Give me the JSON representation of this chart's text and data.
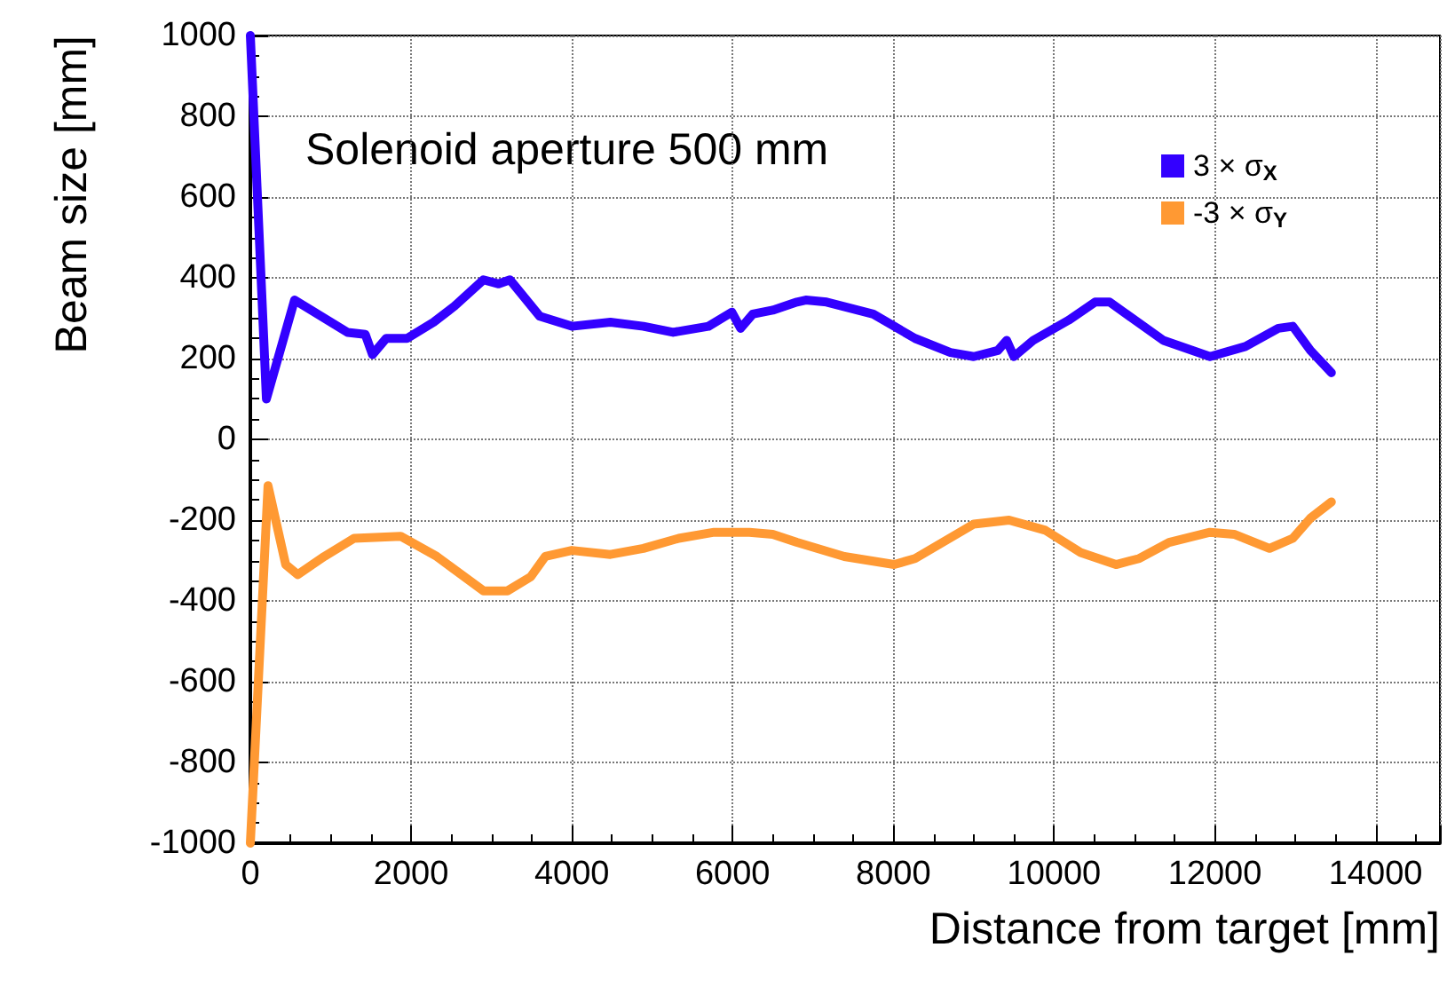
{
  "chart_data": {
    "type": "line",
    "xlabel": "Distance from target [mm]",
    "ylabel": "Beam size [mm]",
    "annotations": [
      "Solenoid aperture 500 mm"
    ],
    "xlim": [
      0,
      14800
    ],
    "xticks": [
      0,
      2000,
      4000,
      6000,
      8000,
      10000,
      12000,
      14000
    ],
    "ylim": [
      -1000,
      1000
    ],
    "yticks": [
      -1000,
      -800,
      -600,
      -400,
      -200,
      0,
      200,
      400,
      600,
      800,
      1000
    ],
    "grid": true,
    "legend": "top right",
    "marker": "none",
    "line_style": "solid",
    "series": [
      {
        "name": "3 × σ$_{X}$",
        "color": "#3300ff",
        "x": [
          0,
          200,
          550,
          1210,
          1430,
          1520,
          1690,
          1950,
          2280,
          2540,
          2900,
          3090,
          3230,
          3600,
          4000,
          4480,
          4890,
          5260,
          5700,
          5990,
          6100,
          6250,
          6500,
          6800,
          6910,
          7170,
          7750,
          8270,
          8710,
          9000,
          9300,
          9410,
          9500,
          9740,
          10180,
          10510,
          10690,
          11360,
          11940,
          12380,
          12790,
          12970,
          13190,
          13450
        ],
        "values": [
          1000,
          100,
          345,
          265,
          260,
          210,
          250,
          250,
          290,
          330,
          395,
          385,
          395,
          305,
          280,
          290,
          280,
          265,
          280,
          315,
          275,
          310,
          320,
          340,
          345,
          340,
          310,
          250,
          215,
          205,
          220,
          245,
          205,
          245,
          295,
          340,
          340,
          245,
          205,
          230,
          275,
          280,
          220,
          165
        ]
      },
      {
        "name": "-3 × σ$_{Y}$",
        "color": "#ff9933",
        "x": [
          0,
          220,
          440,
          590,
          920,
          1290,
          1870,
          2320,
          2900,
          3200,
          3490,
          3670,
          4000,
          4480,
          4890,
          5330,
          5770,
          6210,
          6500,
          6800,
          7390,
          8010,
          8270,
          9000,
          9440,
          9890,
          10330,
          10770,
          11060,
          11430,
          11940,
          12240,
          12680,
          12970,
          13190,
          13450
        ],
        "values": [
          -1000,
          -115,
          -310,
          -335,
          -290,
          -245,
          -240,
          -290,
          -375,
          -375,
          -340,
          -290,
          -275,
          -285,
          -270,
          -245,
          -230,
          -230,
          -235,
          -255,
          -290,
          -310,
          -295,
          -210,
          -200,
          -225,
          -280,
          -310,
          -295,
          -255,
          -230,
          -235,
          -270,
          -245,
          -195,
          -155
        ]
      }
    ]
  }
}
